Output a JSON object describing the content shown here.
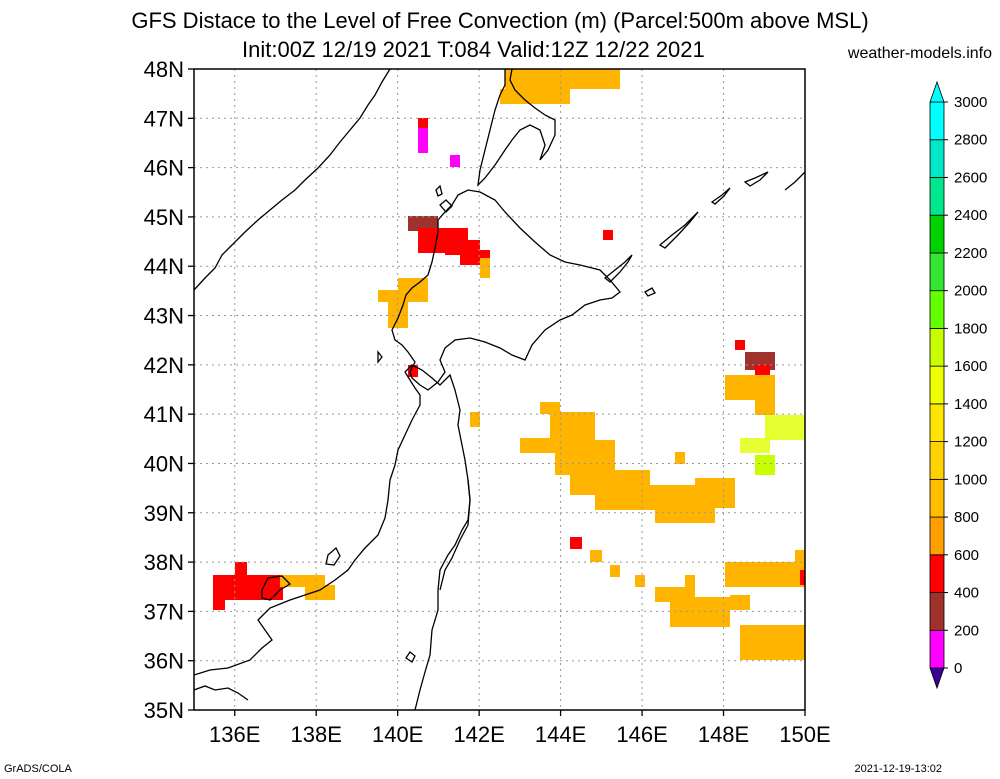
{
  "title_line1": "GFS Distace to the Level of Free Convection (m) (Parcel:500m above MSL)",
  "title_line2": "Init:00Z 12/19 2021 T:084 Valid:12Z 12/22 2021",
  "site": "weather-models.info",
  "footer_left": "GrADS/COLA",
  "footer_right": "2021-12-19-13:02",
  "map": {
    "lon_range": [
      135,
      150
    ],
    "lat_range": [
      35,
      48
    ],
    "lon_ticks": [
      "136E",
      "138E",
      "140E",
      "142E",
      "144E",
      "146E",
      "148E",
      "150E"
    ],
    "lat_ticks": [
      "35N",
      "36N",
      "37N",
      "38N",
      "39N",
      "40N",
      "41N",
      "42N",
      "43N",
      "44N",
      "45N",
      "46N",
      "47N",
      "48N"
    ]
  },
  "colorbar": {
    "labels": [
      "0",
      "200",
      "400",
      "600",
      "800",
      "1000",
      "1200",
      "1400",
      "1600",
      "1800",
      "2000",
      "2200",
      "2400",
      "2600",
      "2800",
      "3000"
    ],
    "colors": [
      "#3c0096",
      "#ff00ff",
      "#a0322d",
      "#ff0000",
      "#ffa000",
      "#ffbe00",
      "#ffd200",
      "#ffe600",
      "#f0ff00",
      "#c8ff00",
      "#64ff00",
      "#32e632",
      "#00d200",
      "#00e68c",
      "#00e6c8",
      "#00ffff"
    ]
  }
}
